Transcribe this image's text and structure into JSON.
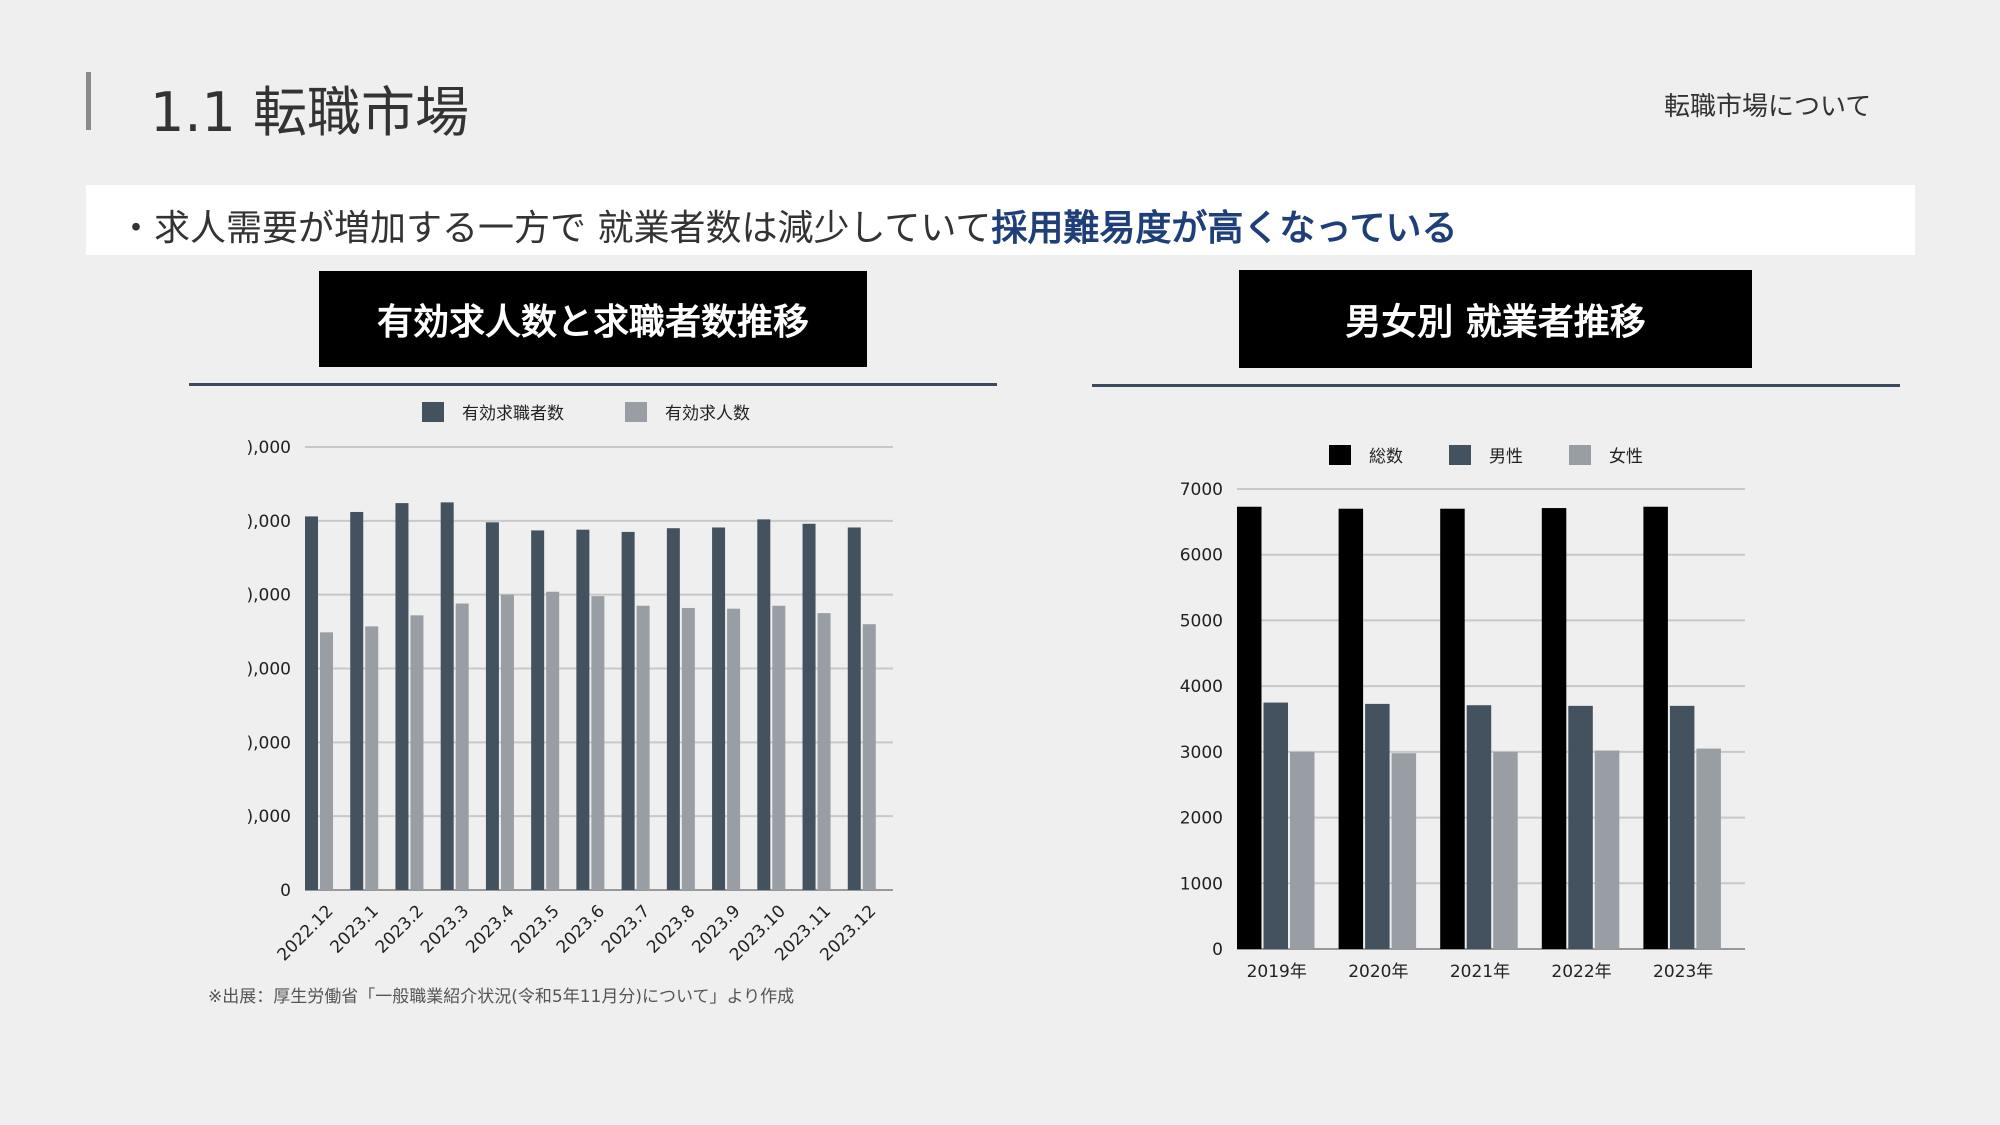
{
  "header": {
    "title": "1.1 転職市場",
    "section": "転職市場について"
  },
  "banner": {
    "bullet": "・",
    "text": "求人需要が増加する一方で 就業者数は減少していて",
    "highlight": "採用難易度が高くなっている"
  },
  "left_panel": {
    "title": "有効求人数と求職者数推移"
  },
  "right_panel": {
    "title": "男女別 就業者推移"
  },
  "footnote": "※出展：厚生労働省「一般職業紹介状況(令和5年11月分)について」より作成",
  "colors": {
    "dark": "#44525f",
    "light": "#989ea4",
    "black": "#000000",
    "accent": "#1f3f7a"
  },
  "chart_data": [
    {
      "type": "bar",
      "title": "有効求人数と求職者数推移",
      "categories": [
        "2022.12",
        "2023.1",
        "2023.2",
        "2023.3",
        "2023.4",
        "2023.5",
        "2023.6",
        "2023.7",
        "2023.8",
        "2023.9",
        "2023.10",
        "2023.11",
        "2023.12"
      ],
      "ytick_labels": [
        "0",
        "),000",
        "),000",
        "),000",
        "),000",
        "),000",
        "),000"
      ],
      "ylim": [
        0,
        6
      ],
      "ylabel_note": "y-axis labels clipped; values in gridline units",
      "series": [
        {
          "name": "有効求職者数",
          "color": "#44525f",
          "values": [
            5.06,
            5.12,
            5.24,
            5.25,
            4.98,
            4.87,
            4.88,
            4.85,
            4.9,
            4.91,
            5.02,
            4.96,
            4.91
          ]
        },
        {
          "name": "有効求人数",
          "color": "#989ea4",
          "values": [
            3.49,
            3.57,
            3.72,
            3.88,
            4.0,
            4.04,
            3.98,
            3.85,
            3.82,
            3.81,
            3.85,
            3.75,
            3.6
          ]
        }
      ],
      "legend": "top",
      "grid": true
    },
    {
      "type": "bar",
      "title": "男女別 就業者推移",
      "categories": [
        "2019年",
        "2020年",
        "2021年",
        "2022年",
        "2023年"
      ],
      "yticks": [
        0,
        1000,
        2000,
        3000,
        4000,
        5000,
        6000,
        7000
      ],
      "ylim": [
        0,
        7000
      ],
      "series": [
        {
          "name": "総数",
          "color": "#000000",
          "values": [
            6730,
            6700,
            6700,
            6710,
            6730
          ]
        },
        {
          "name": "男性",
          "color": "#44525f",
          "values": [
            3750,
            3730,
            3710,
            3700,
            3700
          ]
        },
        {
          "name": "女性",
          "color": "#989ea4",
          "values": [
            3000,
            2980,
            3000,
            3020,
            3050
          ]
        }
      ],
      "legend": "top",
      "grid": true
    }
  ]
}
